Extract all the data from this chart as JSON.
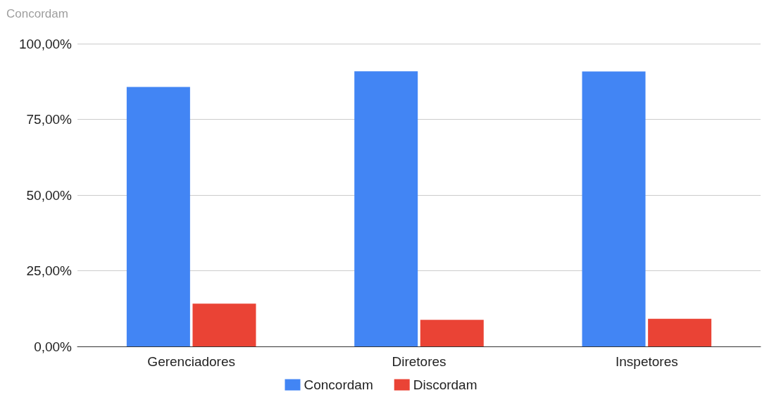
{
  "chart_data": {
    "type": "bar",
    "title": "Concordam",
    "categories": [
      "Gerenciadores",
      "Diretores",
      "Inspetores"
    ],
    "series": [
      {
        "name": "Concordam",
        "color": "#4285f4",
        "values": [
          85.7,
          90.9,
          90.8
        ]
      },
      {
        "name": "Discordam",
        "color": "#ea4335",
        "values": [
          14.1,
          8.8,
          9.1
        ]
      }
    ],
    "ylim": [
      0,
      100
    ],
    "yticks": [
      {
        "value": 0,
        "label": "0,00%"
      },
      {
        "value": 25,
        "label": "25,00%"
      },
      {
        "value": 50,
        "label": "50,00%"
      },
      {
        "value": 75,
        "label": "75,00%"
      },
      {
        "value": 100,
        "label": "100,00%"
      }
    ],
    "grid": "y",
    "legend": "bottom"
  }
}
